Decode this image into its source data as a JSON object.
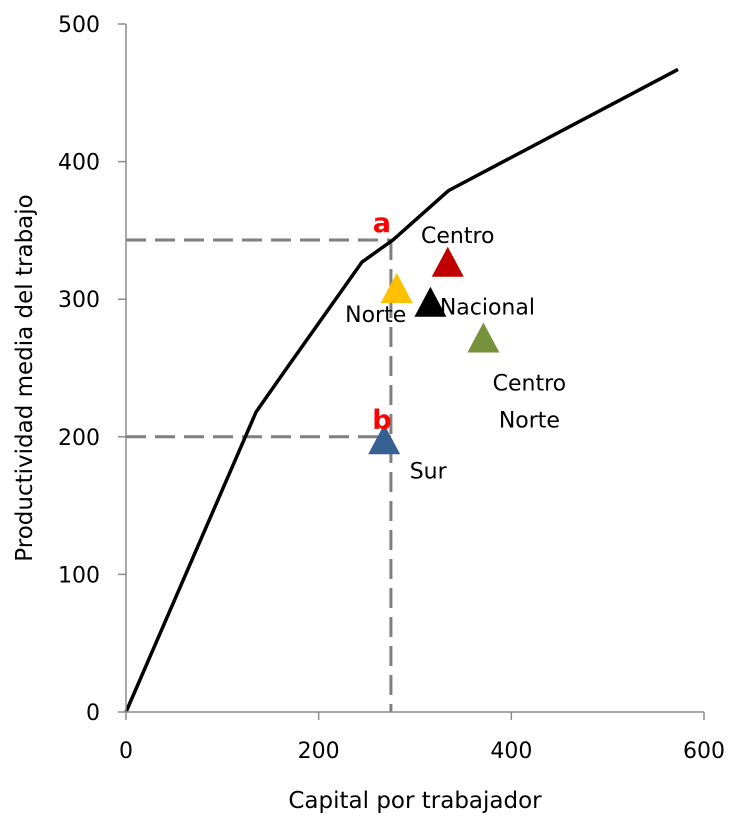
{
  "chart_data": {
    "type": "scatter",
    "title": "",
    "xlabel": "Capital por trabajador",
    "ylabel": "Productividad media del trabajo",
    "xlim": [
      0,
      600
    ],
    "ylim": [
      0,
      500
    ],
    "x_ticks": [
      0,
      200,
      400,
      600
    ],
    "y_ticks": [
      0,
      100,
      200,
      300,
      400,
      500
    ],
    "grid": false,
    "legend": "none",
    "frontier": {
      "color": "#000000",
      "points": [
        {
          "x": 0,
          "y": 0
        },
        {
          "x": 135,
          "y": 218
        },
        {
          "x": 167,
          "y": 250
        },
        {
          "x": 245,
          "y": 327
        },
        {
          "x": 277,
          "y": 343
        },
        {
          "x": 335,
          "y": 379
        },
        {
          "x": 573,
          "y": 467
        }
      ]
    },
    "regions": [
      {
        "label": "Centro",
        "x": 334,
        "y": 325,
        "color": "#C00000",
        "label_lines": [
          "Centro"
        ]
      },
      {
        "label": "Norte",
        "x": 281,
        "y": 306,
        "color": "#FFC000",
        "label_lines": [
          "Norte"
        ]
      },
      {
        "label": "Nacional",
        "x": 316,
        "y": 296,
        "color": "#000000",
        "label_lines": [
          "Nacional"
        ]
      },
      {
        "label": "Centro Norte",
        "x": 371,
        "y": 270,
        "color": "#76923C",
        "label_lines": [
          "Centro",
          "Norte"
        ]
      },
      {
        "label": "Sur",
        "x": 268,
        "y": 196,
        "color": "#376092",
        "label_lines": [
          "Sur"
        ]
      }
    ],
    "reference_points": [
      {
        "label": "a",
        "x": 275,
        "y": 343,
        "color": "#FF0000"
      },
      {
        "label": "b",
        "x": 275,
        "y": 200,
        "color": "#FF0000"
      }
    ],
    "guide_line_color": "#7F7F7F"
  }
}
